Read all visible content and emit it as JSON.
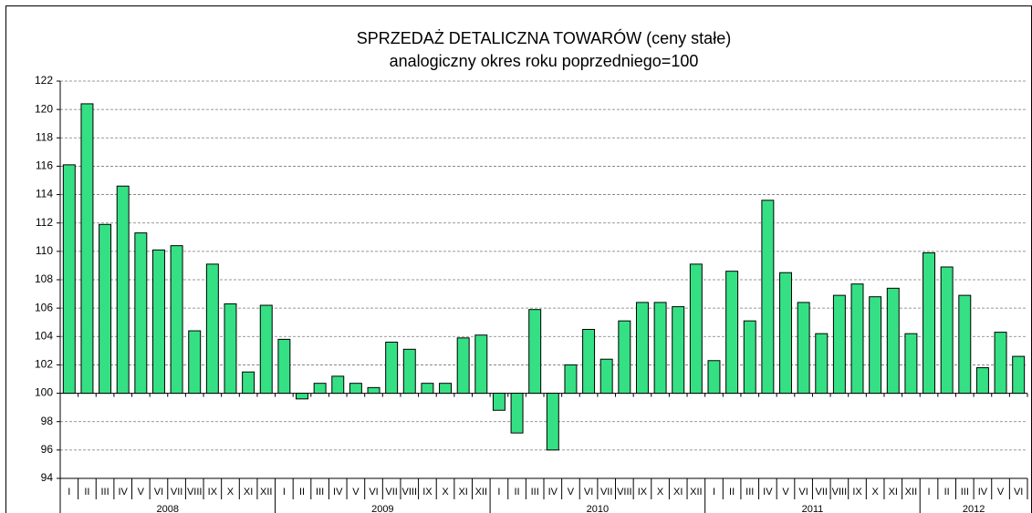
{
  "chart_data": {
    "type": "bar",
    "title": "SPRZEDAŻ DETALICZNA TOWARÓW  (ceny stałe)",
    "subtitle": "analogiczny okres  roku poprzedniego=100",
    "categories": [
      "I",
      "II",
      "III",
      "IV",
      "V",
      "VI",
      "VII",
      "VIII",
      "IX",
      "X",
      "XI",
      "XII",
      "I",
      "II",
      "III",
      "IV",
      "V",
      "VI",
      "VII",
      "VIII",
      "IX",
      "X",
      "XI",
      "XII",
      "I",
      "II",
      "III",
      "IV",
      "V",
      "VI",
      "VII",
      "VIII",
      "IX",
      "X",
      "XI",
      "XII",
      "I",
      "II",
      "III",
      "IV",
      "V",
      "VI",
      "VII",
      "VIII",
      "IX",
      "X",
      "XI",
      "XII",
      "I",
      "II",
      "III",
      "IV",
      "V",
      "VI"
    ],
    "year_labels": [
      "2008",
      "2009",
      "2010",
      "2011",
      "2012"
    ],
    "values": [
      116.1,
      120.4,
      111.9,
      114.6,
      111.3,
      110.1,
      110.4,
      104.4,
      109.1,
      106.3,
      101.5,
      106.2,
      103.8,
      99.6,
      100.7,
      101.2,
      100.7,
      100.4,
      103.6,
      103.1,
      100.7,
      100.7,
      103.9,
      104.1,
      98.8,
      97.2,
      105.9,
      96.0,
      102.0,
      104.5,
      102.4,
      105.1,
      106.4,
      106.4,
      106.1,
      109.1,
      102.3,
      108.6,
      105.1,
      113.6,
      108.5,
      106.4,
      104.2,
      106.9,
      107.7,
      106.8,
      107.4,
      104.2,
      109.9,
      108.9,
      106.9,
      101.8,
      104.3,
      102.6
    ],
    "bar_base": 100,
    "color": "#35e084",
    "ylim": [
      94,
      122
    ],
    "yticks": [
      94,
      96,
      98,
      100,
      102,
      104,
      106,
      108,
      110,
      112,
      114,
      116,
      118,
      120,
      122
    ],
    "grid": true
  }
}
